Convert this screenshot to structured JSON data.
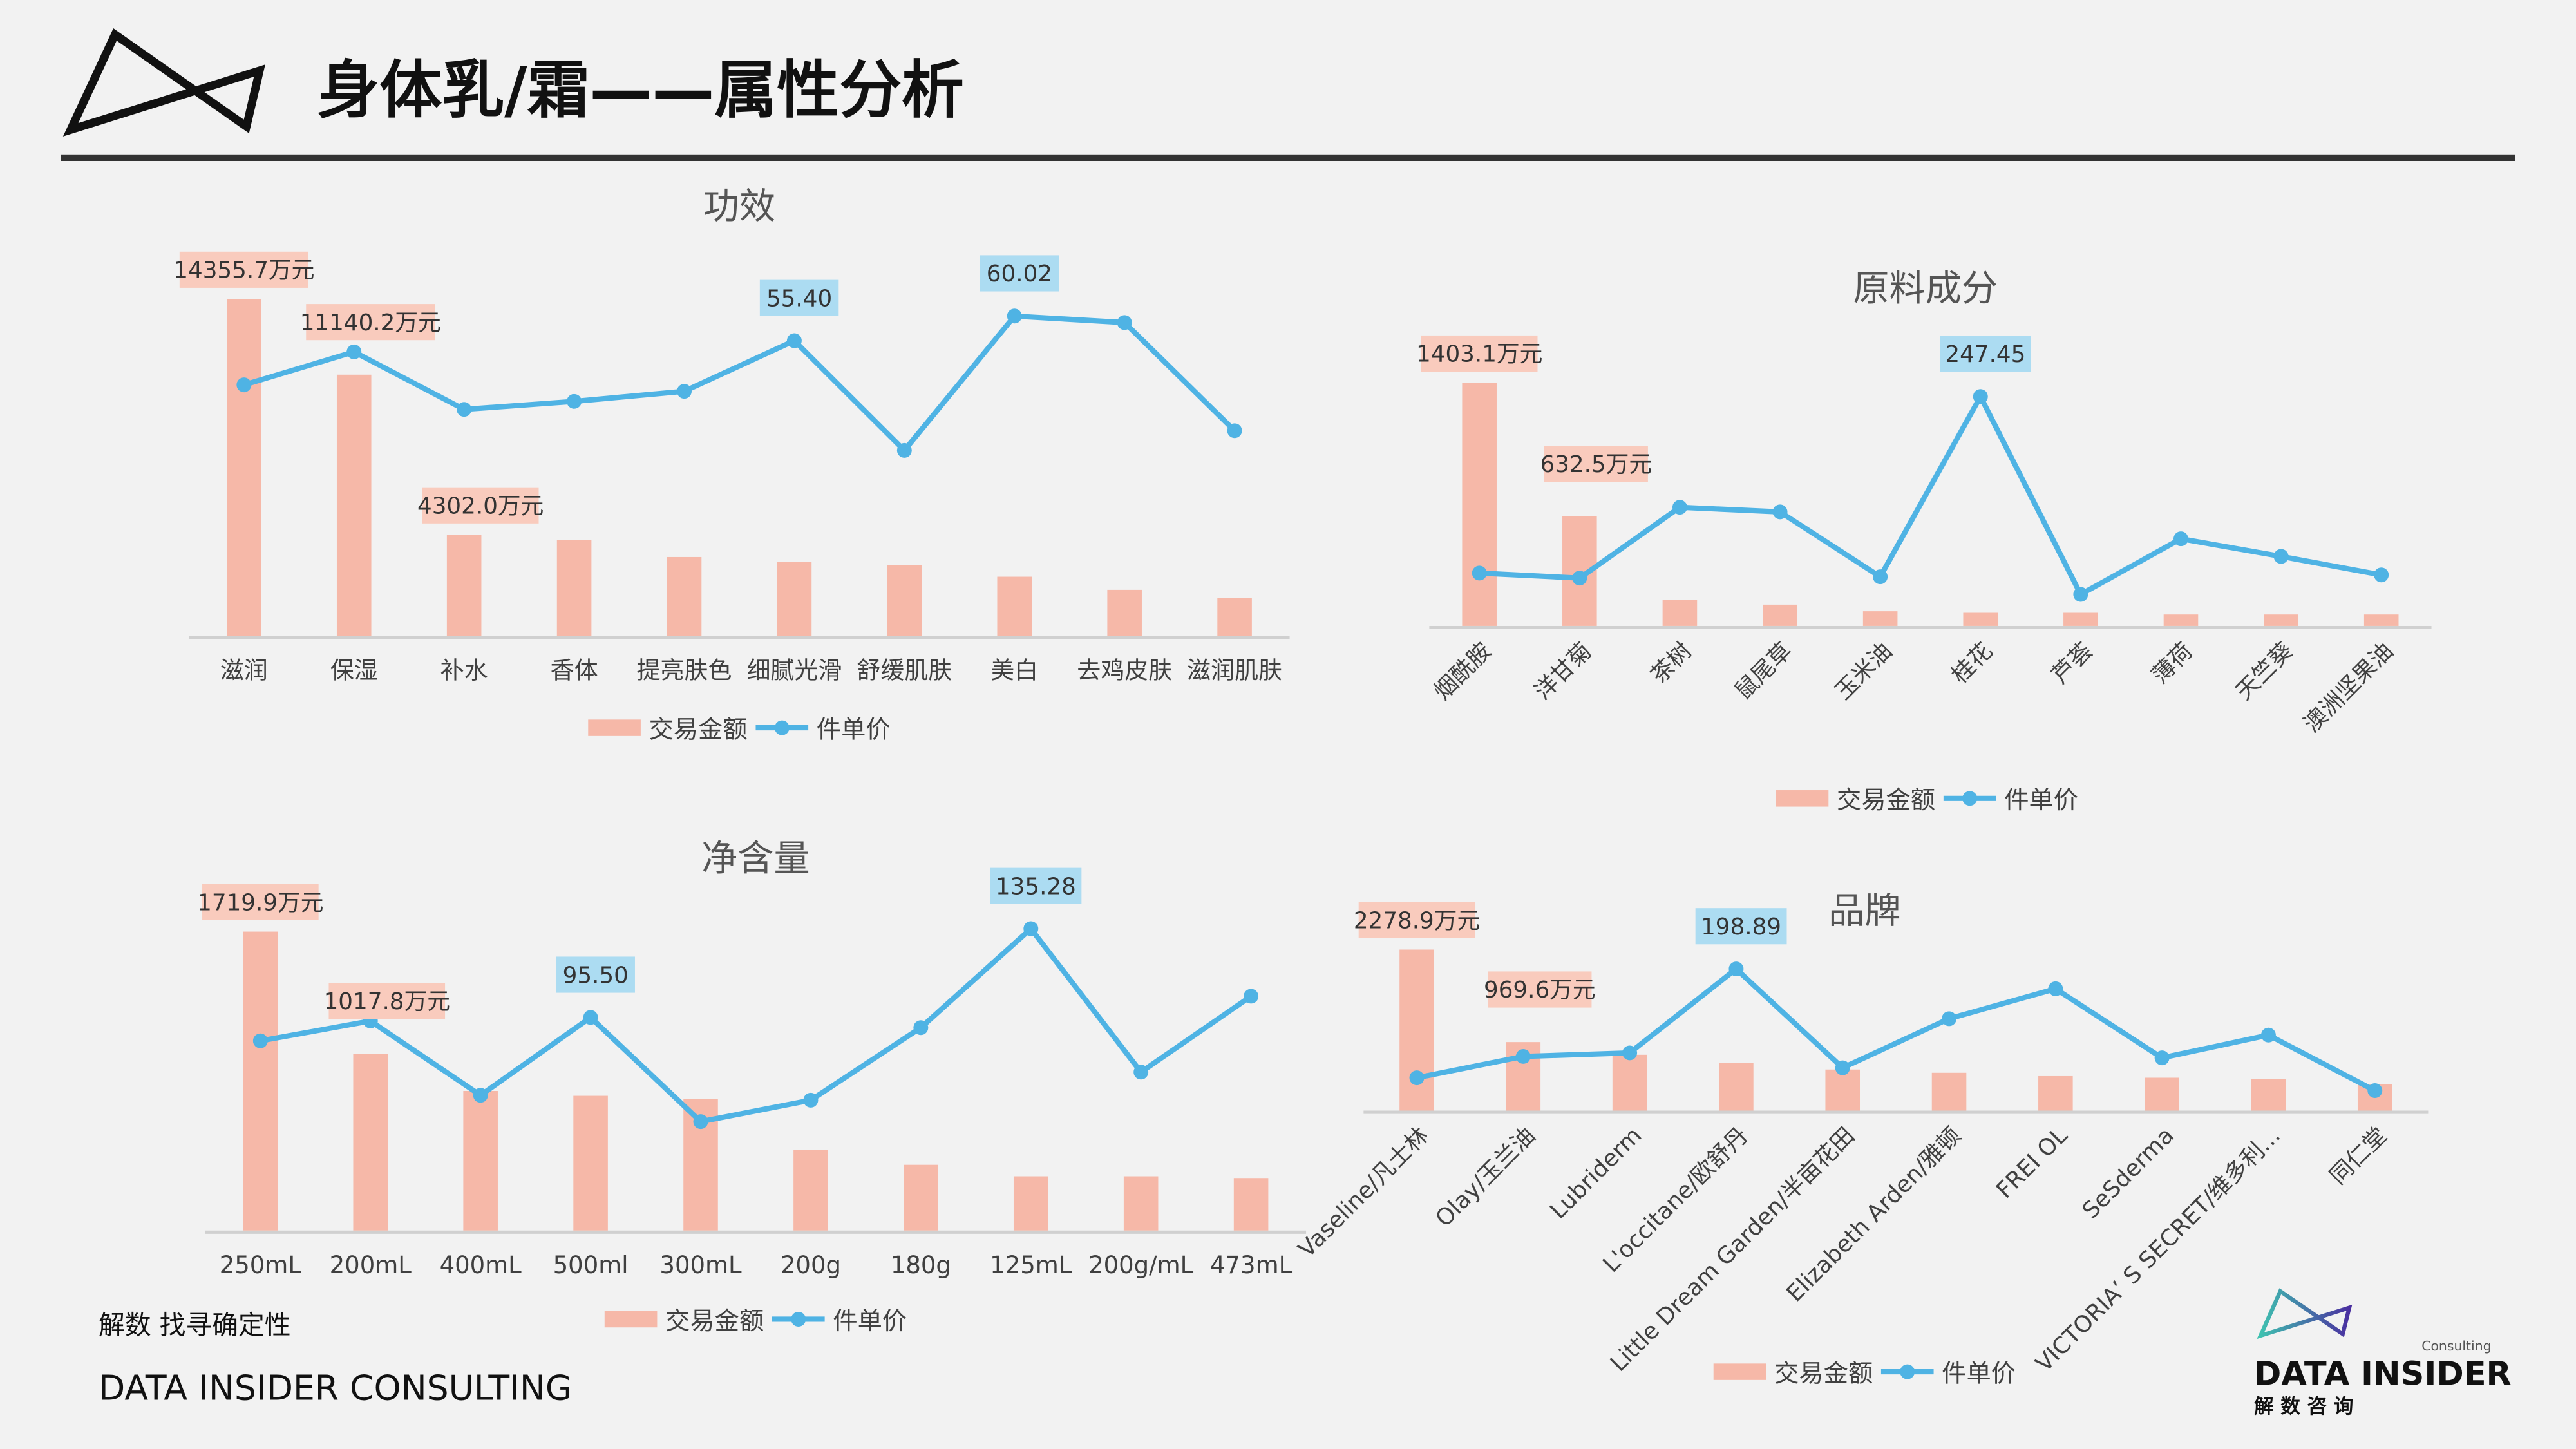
{
  "header": {
    "title": "身体乳/霜——属性分析"
  },
  "footer": {
    "slogan": "解数 找寻确定性",
    "company": "DATA INSIDER CONSULTING"
  },
  "brand_logo": {
    "name": "DATA INSIDER",
    "sub": "Consulting",
    "cn": "解 数 咨 询"
  },
  "colors": {
    "bar": "#f6b8a8",
    "line": "#4fb3e4",
    "bar_label_bg": "#f9cbbd",
    "line_label_bg": "#acdcf2"
  },
  "legend": {
    "bar": "交易金额",
    "line": "件单价"
  },
  "chart_data": [
    {
      "type": "bar+line",
      "title": "功效",
      "categories": [
        "滋润",
        "保湿",
        "补水",
        "香体",
        "提亮肤色",
        "细腻光滑",
        "舒缓肌肤",
        "美白",
        "去鸡皮肤",
        "滋润肌肤"
      ],
      "series": [
        {
          "name": "交易金额",
          "type": "bar",
          "unit": "万元",
          "values": [
            14355.7,
            11140.2,
            4302.0,
            4100,
            3360,
            3150,
            3010,
            2520,
            1960,
            1610
          ],
          "ylim": [
            0,
            15000
          ],
          "labels": [
            {
              "index": 0,
              "text": "14355.7万元"
            },
            {
              "index": 1,
              "text": "11140.2万元"
            },
            {
              "index": 2,
              "text": "4302.0万元"
            }
          ]
        },
        {
          "name": "件单价",
          "type": "line",
          "values": [
            47.1,
            53.3,
            42.5,
            44.0,
            45.9,
            55.4,
            34.8,
            60.02,
            58.8,
            38.5
          ],
          "ylim": [
            0,
            66
          ],
          "labels": [
            {
              "index": 5,
              "text": "55.40"
            },
            {
              "index": 7,
              "text": "60.02"
            }
          ]
        }
      ],
      "legend_position": "bottom"
    },
    {
      "type": "bar+line",
      "title": "原料成分",
      "categories": [
        "烟酰胺",
        "洋甘菊",
        "茶树",
        "鼠尾草",
        "玉米油",
        "桂花",
        "芦荟",
        "薄荷",
        "天竺葵",
        "澳洲坚果油"
      ],
      "series": [
        {
          "name": "交易金额",
          "type": "bar",
          "unit": "万元",
          "values": [
            1403.1,
            632.5,
            152,
            123,
            85,
            76,
            76,
            66,
            66,
            66
          ],
          "ylim": [
            0,
            1500
          ],
          "labels": [
            {
              "index": 0,
              "text": "1403.1万元"
            },
            {
              "index": 1,
              "text": "632.5万元"
            }
          ]
        },
        {
          "name": "件单价",
          "type": "line",
          "values": [
            57,
            51.6,
            128,
            123,
            53,
            247.45,
            34,
            94,
            75,
            55
          ],
          "ylim": [
            0,
            280
          ],
          "labels": [
            {
              "index": 5,
              "text": "247.45"
            }
          ]
        }
      ],
      "legend_position": "bottom"
    },
    {
      "type": "bar+line",
      "title": "净含量",
      "categories": [
        "250mL",
        "200mL",
        "400mL",
        "500ml",
        "300mL",
        "200g",
        "180g",
        "125mL",
        "200g/mL",
        "473mL"
      ],
      "series": [
        {
          "name": "交易金额",
          "type": "bar",
          "unit": "万元",
          "values": [
            1719.9,
            1017.8,
            803,
            775,
            756,
            463,
            378,
            312,
            312,
            302
          ],
          "ylim": [
            0,
            1900
          ],
          "labels": [
            {
              "index": 0,
              "text": "1719.9万元"
            },
            {
              "index": 1,
              "text": "1017.8万元"
            }
          ]
        },
        {
          "name": "件单价",
          "type": "line",
          "values": [
            85,
            93.9,
            60.6,
            95.5,
            48.8,
            58.4,
            90.9,
            135.28,
            71,
            105
          ],
          "ylim": [
            0,
            148
          ],
          "labels": [
            {
              "index": 3,
              "text": "95.50"
            },
            {
              "index": 7,
              "text": "135.28"
            }
          ]
        }
      ],
      "legend_position": "bottom"
    },
    {
      "type": "bar+line",
      "title": "品牌",
      "categories": [
        "Vaseline/凡士林",
        "Olay/玉兰油",
        "Lubriderm",
        "L'occitane/欧舒丹",
        "Little Dream Garden/半亩花田",
        "Elizabeth Arden/雅顿",
        "FREI OL",
        "SeSderma",
        "VICTORIA’ S SECRET/维多利...",
        "同仁堂"
      ],
      "series": [
        {
          "name": "交易金额",
          "type": "bar",
          "unit": "万元",
          "values": [
            2278.9,
            969.6,
            790,
            674,
            581,
            535,
            488,
            465,
            442,
            372
          ],
          "ylim": [
            0,
            2500
          ],
          "labels": [
            {
              "index": 0,
              "text": "2278.9万元"
            },
            {
              "index": 1,
              "text": "969.6万元"
            }
          ]
        },
        {
          "name": "件单价",
          "type": "line",
          "values": [
            46,
            76,
            81,
            198.89,
            60,
            129,
            171,
            74,
            106,
            28
          ],
          "ylim": [
            0,
            248
          ],
          "labels": [
            {
              "index": 3,
              "text": "198.89"
            }
          ]
        }
      ],
      "legend_position": "bottom"
    }
  ]
}
